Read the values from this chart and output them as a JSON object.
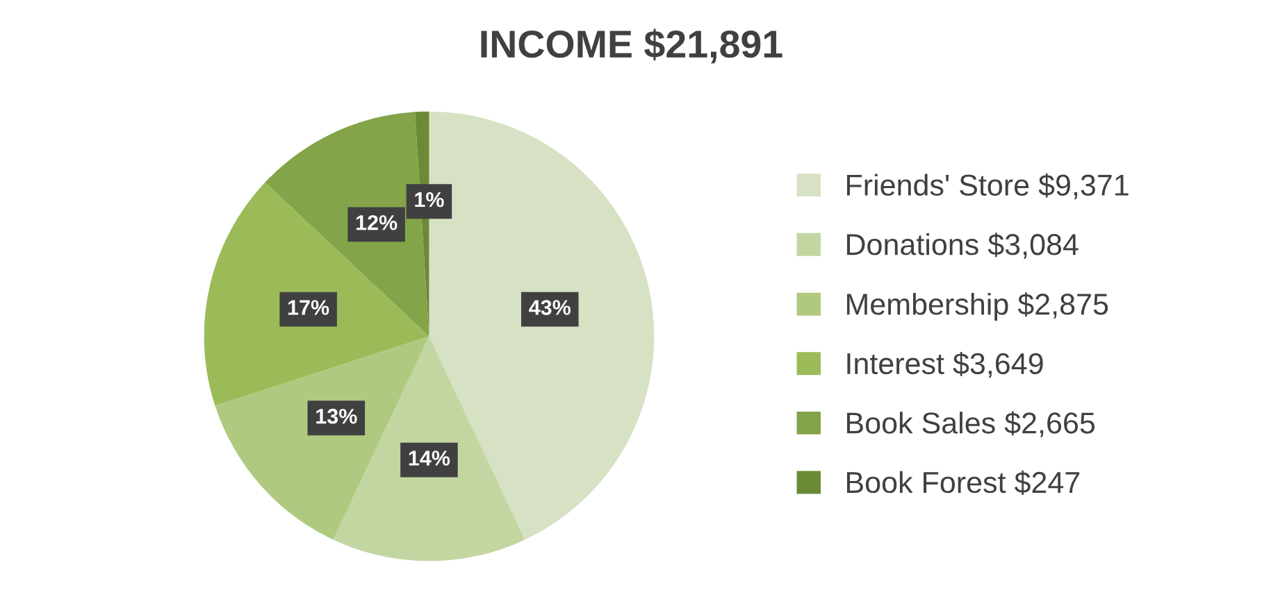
{
  "chart_data": {
    "type": "pie",
    "title": "INCOME $21,891",
    "categories": [
      "Friends' Store $9,371",
      "Donations $3,084",
      "Membership $2,875",
      "Interest $3,649",
      "Book Sales $2,665",
      "Book Forest $247"
    ],
    "values": [
      43,
      14,
      13,
      17,
      12,
      1
    ],
    "value_labels": [
      "43%",
      "14%",
      "13%",
      "17%",
      "12%",
      "1%"
    ],
    "colors": [
      "#d7e1c4",
      "#c3d6a1",
      "#afca80",
      "#9bbb59",
      "#83a448",
      "#6a8a35"
    ],
    "legend": "right"
  }
}
